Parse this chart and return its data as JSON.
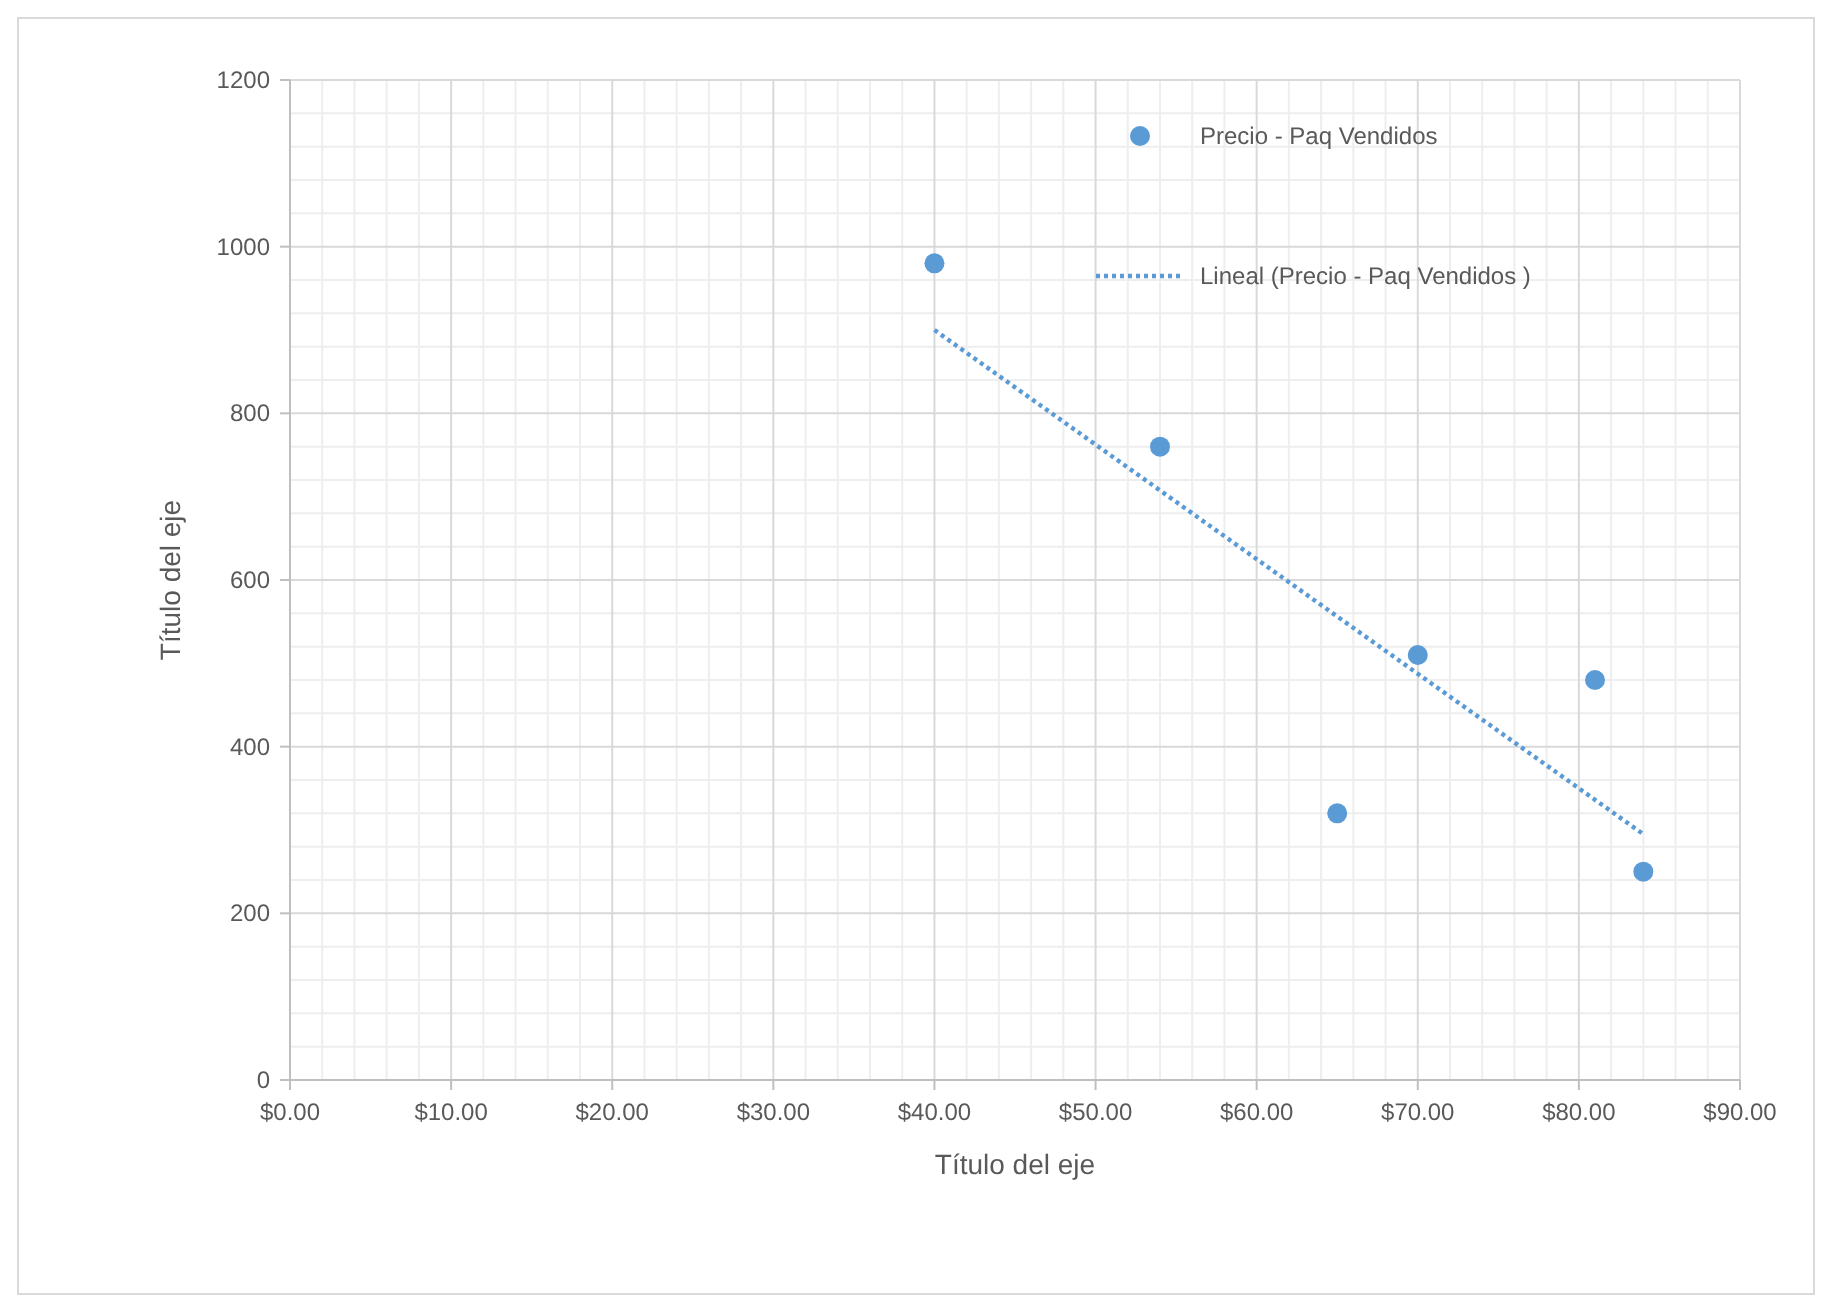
{
  "chart_data": {
    "type": "scatter",
    "xlabel": "Título del eje",
    "ylabel": "Título del eje",
    "xlim": [
      0,
      90
    ],
    "xticks": [
      {
        "value": 0,
        "label": "$0.00"
      },
      {
        "value": 10,
        "label": "$10.00"
      },
      {
        "value": 20,
        "label": "$20.00"
      },
      {
        "value": 30,
        "label": "$30.00"
      },
      {
        "value": 40,
        "label": "$40.00"
      },
      {
        "value": 50,
        "label": "$50.00"
      },
      {
        "value": 60,
        "label": "$60.00"
      },
      {
        "value": 70,
        "label": "$70.00"
      },
      {
        "value": 80,
        "label": "$80.00"
      },
      {
        "value": 90,
        "label": "$90.00"
      }
    ],
    "ylim": [
      0,
      1200
    ],
    "yticks": [
      0,
      200,
      400,
      600,
      800,
      1000,
      1200
    ],
    "grid": true,
    "legend": "top right",
    "series": [
      {
        "name": "Precio - Paq Vendidos",
        "marker": "circle",
        "color": "#5b9bd5",
        "x": [
          40,
          54,
          65,
          70,
          81,
          84
        ],
        "values": [
          980,
          760,
          320,
          510,
          480,
          250
        ]
      },
      {
        "name": "Lineal (Precio - Paq Vendidos )",
        "type": "line",
        "line_style": "dotted",
        "color": "#5b9bd5",
        "x": [
          40,
          84
        ],
        "values": [
          900,
          295
        ]
      }
    ]
  }
}
